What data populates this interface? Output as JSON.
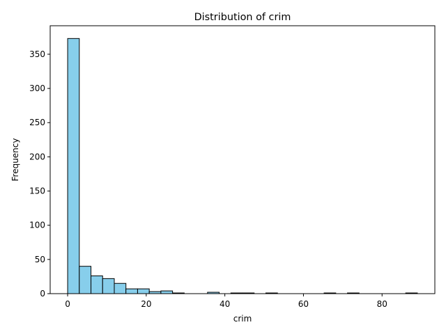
{
  "chart_data": {
    "type": "bar",
    "title": "Distribution of crim",
    "xlabel": "crim",
    "ylabel": "Frequency",
    "bin_width": 2.966,
    "bins": [
      {
        "start": 0.006,
        "count": 373
      },
      {
        "start": 2.972,
        "count": 40
      },
      {
        "start": 5.938,
        "count": 26
      },
      {
        "start": 8.904,
        "count": 22
      },
      {
        "start": 11.869,
        "count": 15
      },
      {
        "start": 14.835,
        "count": 7
      },
      {
        "start": 17.801,
        "count": 7
      },
      {
        "start": 20.767,
        "count": 3
      },
      {
        "start": 23.733,
        "count": 4
      },
      {
        "start": 26.699,
        "count": 1
      },
      {
        "start": 29.665,
        "count": 0
      },
      {
        "start": 32.631,
        "count": 0
      },
      {
        "start": 35.596,
        "count": 2
      },
      {
        "start": 38.562,
        "count": 0
      },
      {
        "start": 41.528,
        "count": 1
      },
      {
        "start": 44.494,
        "count": 1
      },
      {
        "start": 47.46,
        "count": 0
      },
      {
        "start": 50.426,
        "count": 1
      },
      {
        "start": 53.392,
        "count": 0
      },
      {
        "start": 56.358,
        "count": 0
      },
      {
        "start": 59.323,
        "count": 0
      },
      {
        "start": 62.289,
        "count": 0
      },
      {
        "start": 65.255,
        "count": 1
      },
      {
        "start": 68.221,
        "count": 0
      },
      {
        "start": 71.187,
        "count": 1
      },
      {
        "start": 74.153,
        "count": 0
      },
      {
        "start": 77.119,
        "count": 0
      },
      {
        "start": 80.085,
        "count": 0
      },
      {
        "start": 83.05,
        "count": 0
      },
      {
        "start": 86.016,
        "count": 1
      }
    ],
    "xlim": [
      -4.44,
      93.43
    ],
    "ylim": [
      0,
      391.65
    ],
    "xticks": [
      0,
      20,
      40,
      60,
      80
    ],
    "yticks": [
      0,
      50,
      100,
      150,
      200,
      250,
      300,
      350
    ],
    "grid": false,
    "bar_color": "#87ceeb",
    "edge_color": "#000000"
  }
}
